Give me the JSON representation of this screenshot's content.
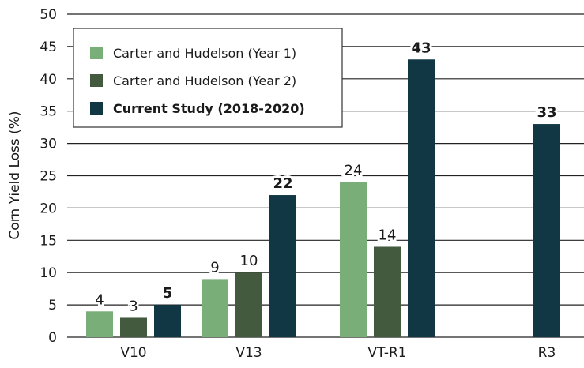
{
  "chart_data": {
    "type": "bar",
    "title": "",
    "xlabel": "",
    "ylabel": "Corn Yield Loss (%)",
    "ylim": [
      0,
      50
    ],
    "yticks": [
      0,
      5,
      10,
      15,
      20,
      25,
      30,
      35,
      40,
      45,
      50
    ],
    "grid": true,
    "legend_position": "top-left",
    "categories": [
      "V10",
      "V13",
      "VT-R1",
      "R3"
    ],
    "series": [
      {
        "name": "Carter and Hudelson (Year 1)",
        "color": "#7aae78",
        "bold": false,
        "values": [
          4,
          9,
          24,
          null
        ]
      },
      {
        "name": "Carter and Hudelson (Year 2)",
        "color": "#435a3e",
        "bold": false,
        "values": [
          3,
          10,
          14,
          null
        ]
      },
      {
        "name": "Current Study (2018-2020)",
        "color": "#113745",
        "bold": true,
        "values": [
          5,
          22,
          43,
          33
        ]
      }
    ]
  }
}
